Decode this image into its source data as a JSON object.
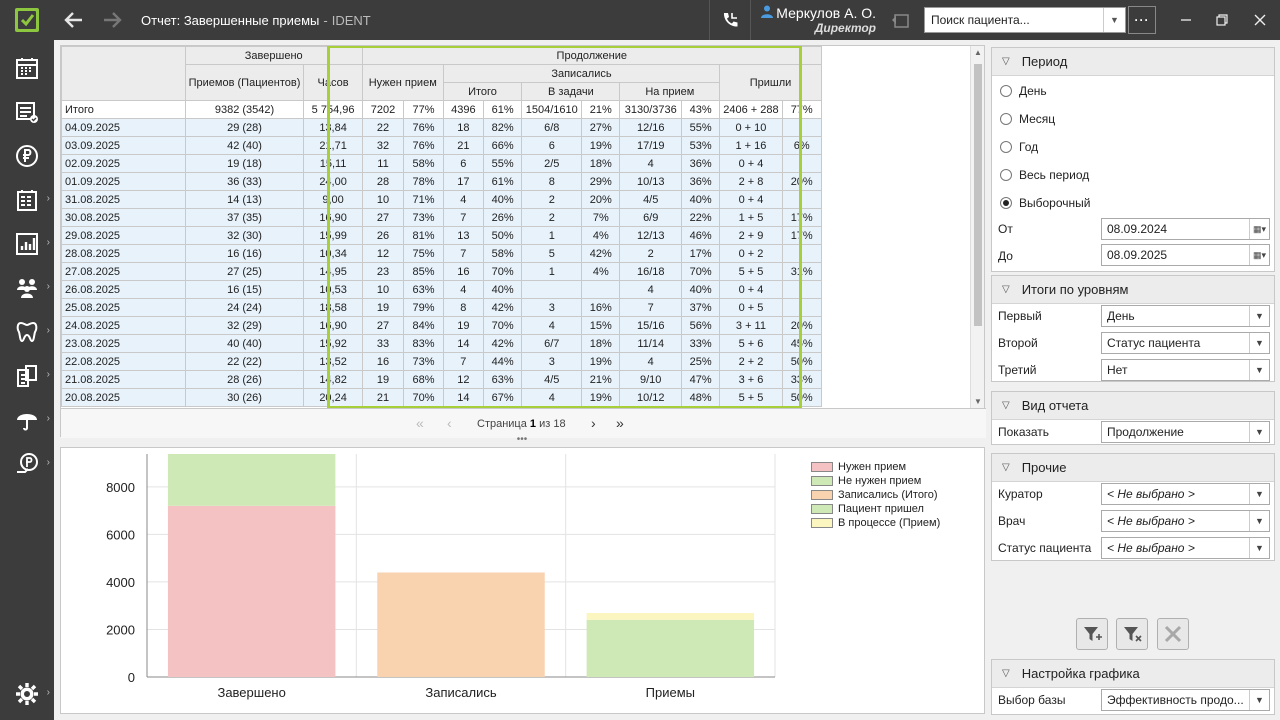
{
  "titlebar": {
    "title": "Отчет: Завершенные приемы",
    "app": "IDENT",
    "user_name": "Меркулов А. О.",
    "user_role": "Директор",
    "search_placeholder": "Поиск пациента...",
    "more": "···"
  },
  "colors": {
    "accent": "#8dc63f",
    "sidebar": "#3c3c3c",
    "row_bg": "#e7f2fb",
    "highlight": "#a6cf3a"
  },
  "sidebar_icons": [
    "calendar-icon",
    "tasks-icon",
    "ruble-icon",
    "reports-icon",
    "chart-icon",
    "patients-icon",
    "tooth-icon",
    "documents-icon",
    "umbrella-icon",
    "payments-icon",
    "settings-icon"
  ],
  "table": {
    "group_completed": "Завершено",
    "group_continue": "Продолжение",
    "h_receptions": "Приемов (Пациентов)",
    "h_hours": "Часов",
    "h_need": "Нужен прием",
    "h_signed": "Записались",
    "h_total": "Итого",
    "h_tasks": "В задачи",
    "h_onreception": "На прием",
    "h_came": "Пришли",
    "rows": [
      [
        "Итого",
        "9382 (3542)",
        "5 754,96",
        "7202",
        "77%",
        "4396",
        "61%",
        "1504/1610",
        "21%",
        "3130/3736",
        "43%",
        "2406 + 288",
        "77%"
      ],
      [
        "04.09.2025",
        "29 (28)",
        "13,84",
        "22",
        "76%",
        "18",
        "82%",
        "6/8",
        "27%",
        "12/16",
        "55%",
        "0 + 10",
        ""
      ],
      [
        "03.09.2025",
        "42 (40)",
        "21,71",
        "32",
        "76%",
        "21",
        "66%",
        "6",
        "19%",
        "17/19",
        "53%",
        "1 + 16",
        "6%"
      ],
      [
        "02.09.2025",
        "19 (18)",
        "15,11",
        "11",
        "58%",
        "6",
        "55%",
        "2/5",
        "18%",
        "4",
        "36%",
        "0 + 4",
        ""
      ],
      [
        "01.09.2025",
        "36 (33)",
        "24,00",
        "28",
        "78%",
        "17",
        "61%",
        "8",
        "29%",
        "10/13",
        "36%",
        "2 + 8",
        "20%"
      ],
      [
        "31.08.2025",
        "14 (13)",
        "9,00",
        "10",
        "71%",
        "4",
        "40%",
        "2",
        "20%",
        "4/5",
        "40%",
        "0 + 4",
        ""
      ],
      [
        "30.08.2025",
        "37 (35)",
        "16,90",
        "27",
        "73%",
        "7",
        "26%",
        "2",
        "7%",
        "6/9",
        "22%",
        "1 + 5",
        "17%"
      ],
      [
        "29.08.2025",
        "32 (30)",
        "15,99",
        "26",
        "81%",
        "13",
        "50%",
        "1",
        "4%",
        "12/13",
        "46%",
        "2 + 9",
        "17%"
      ],
      [
        "28.08.2025",
        "16 (16)",
        "10,34",
        "12",
        "75%",
        "7",
        "58%",
        "5",
        "42%",
        "2",
        "17%",
        "0 + 2",
        ""
      ],
      [
        "27.08.2025",
        "27 (25)",
        "14,95",
        "23",
        "85%",
        "16",
        "70%",
        "1",
        "4%",
        "16/18",
        "70%",
        "5 + 5",
        "31%"
      ],
      [
        "26.08.2025",
        "16 (15)",
        "10,53",
        "10",
        "63%",
        "4",
        "40%",
        "",
        "",
        "4",
        "40%",
        "0 + 4",
        ""
      ],
      [
        "25.08.2025",
        "24 (24)",
        "18,58",
        "19",
        "79%",
        "8",
        "42%",
        "3",
        "16%",
        "7",
        "37%",
        "0 + 5",
        ""
      ],
      [
        "24.08.2025",
        "32 (29)",
        "16,90",
        "27",
        "84%",
        "19",
        "70%",
        "4",
        "15%",
        "15/16",
        "56%",
        "3 + 11",
        "20%"
      ],
      [
        "23.08.2025",
        "40 (40)",
        "15,92",
        "33",
        "83%",
        "14",
        "42%",
        "6/7",
        "18%",
        "11/14",
        "33%",
        "5 + 6",
        "45%"
      ],
      [
        "22.08.2025",
        "22 (22)",
        "13,52",
        "16",
        "73%",
        "7",
        "44%",
        "3",
        "19%",
        "4",
        "25%",
        "2 + 2",
        "50%"
      ],
      [
        "21.08.2025",
        "28 (26)",
        "14,82",
        "19",
        "68%",
        "12",
        "63%",
        "4/5",
        "21%",
        "9/10",
        "47%",
        "3 + 6",
        "33%"
      ],
      [
        "20.08.2025",
        "30 (26)",
        "20,24",
        "21",
        "70%",
        "14",
        "67%",
        "4",
        "19%",
        "10/12",
        "48%",
        "5 + 5",
        "50%"
      ]
    ]
  },
  "pager": {
    "prefix": "Страница",
    "current": "1",
    "of": "из",
    "total": "18"
  },
  "chart_data": {
    "type": "bar",
    "stacked": true,
    "categories": [
      "Завершено",
      "Записались",
      "Приемы"
    ],
    "series": [
      {
        "name": "Нужен прием",
        "color": "#f4c2c2",
        "values": [
          7202,
          0,
          0
        ]
      },
      {
        "name": "Не нужен прием",
        "color": "#cfe9b6",
        "values": [
          2180,
          0,
          0
        ]
      },
      {
        "name": "Записались (Итого)",
        "color": "#f9d2b0",
        "values": [
          0,
          4396,
          0
        ]
      },
      {
        "name": "Пациент пришел",
        "color": "#cfe9b6",
        "values": [
          0,
          0,
          2406
        ]
      },
      {
        "name": "В процессе (Прием)",
        "color": "#fbf5c0",
        "values": [
          0,
          0,
          288
        ]
      }
    ],
    "ylim": [
      0,
      9382
    ],
    "yticks": [
      "0",
      "2000",
      "4000",
      "6000",
      "8000"
    ],
    "grid": true,
    "legend": "top-right"
  },
  "right_panel": {
    "period": {
      "title": "Период",
      "options": [
        "День",
        "Месяц",
        "Год",
        "Весь период",
        "Выборочный"
      ],
      "selected": "Выборочный",
      "from_label": "От",
      "from_value": "08.09.2024",
      "to_label": "До",
      "to_value": "08.09.2025"
    },
    "levels": {
      "title": "Итоги по уровням",
      "first_label": "Первый",
      "first_value": "День",
      "second_label": "Второй",
      "second_value": "Статус пациента",
      "third_label": "Третий",
      "third_value": "Нет"
    },
    "view": {
      "title": "Вид отчета",
      "show_label": "Показать",
      "show_value": "Продолжение"
    },
    "other": {
      "title": "Прочие",
      "curator_label": "Куратор",
      "curator_value": "< Не выбрано >",
      "doctor_label": "Врач",
      "doctor_value": "< Не выбрано >",
      "status_label": "Статус пациента",
      "status_value": "< Не выбрано >"
    },
    "chart_settings": {
      "title": "Настройка графика",
      "base_label": "Выбор базы",
      "base_value": "Эффективность продо..."
    }
  }
}
